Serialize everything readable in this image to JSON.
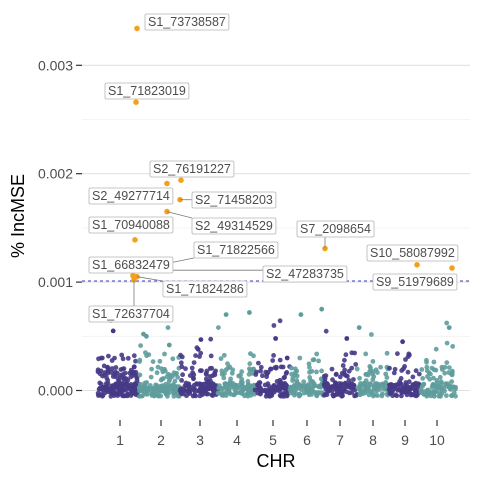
{
  "chart_data": {
    "type": "scatter",
    "subtype": "manhattan",
    "xlabel": "CHR",
    "ylabel": "% IncMSE",
    "chromosomes": [
      "1",
      "2",
      "3",
      "4",
      "5",
      "6",
      "7",
      "8",
      "9",
      "10"
    ],
    "y_ticks": [
      "0.000",
      "0.001",
      "0.002",
      "0.003"
    ],
    "ylim": [
      -0.0003,
      0.0035
    ],
    "grid": true,
    "threshold": {
      "value": 0.00101,
      "color": "#3a3acc",
      "style": "dashed"
    },
    "colors": {
      "odd_chr": "#463a86",
      "even_chr": "#5f9c9c",
      "highlight": "#f3a11c"
    },
    "highlighted": [
      {
        "label": "S1_73738587",
        "chr": "1",
        "y": 0.00334
      },
      {
        "label": "S1_71823019",
        "chr": "1",
        "y": 0.00266
      },
      {
        "label": "S2_76191227",
        "chr": "2",
        "y": 0.00194
      },
      {
        "label": "S2_49277714",
        "chr": "2",
        "y": 0.00191
      },
      {
        "label": "S2_71458203",
        "chr": "2",
        "y": 0.00176
      },
      {
        "label": "S2_49314529",
        "chr": "2",
        "y": 0.00165
      },
      {
        "label": "S1_70940088",
        "chr": "1",
        "y": 0.00139
      },
      {
        "label": "S7_2098654",
        "chr": "7",
        "y": 0.00131
      },
      {
        "label": "S1_71822566",
        "chr": "1",
        "y": 0.00112
      },
      {
        "label": "S10_58087992",
        "chr": "10",
        "y": 0.00116
      },
      {
        "label": "S1_66832479",
        "chr": "1",
        "y": 0.00106
      },
      {
        "label": "S2_47283735",
        "chr": "2",
        "y": 0.00111
      },
      {
        "label": "S9_51979689",
        "chr": "9",
        "y": 0.00113
      },
      {
        "label": "S1_71824286",
        "chr": "1",
        "y": 0.00105
      },
      {
        "label": "S1_72637704",
        "chr": "1",
        "y": 0.00102
      }
    ]
  }
}
